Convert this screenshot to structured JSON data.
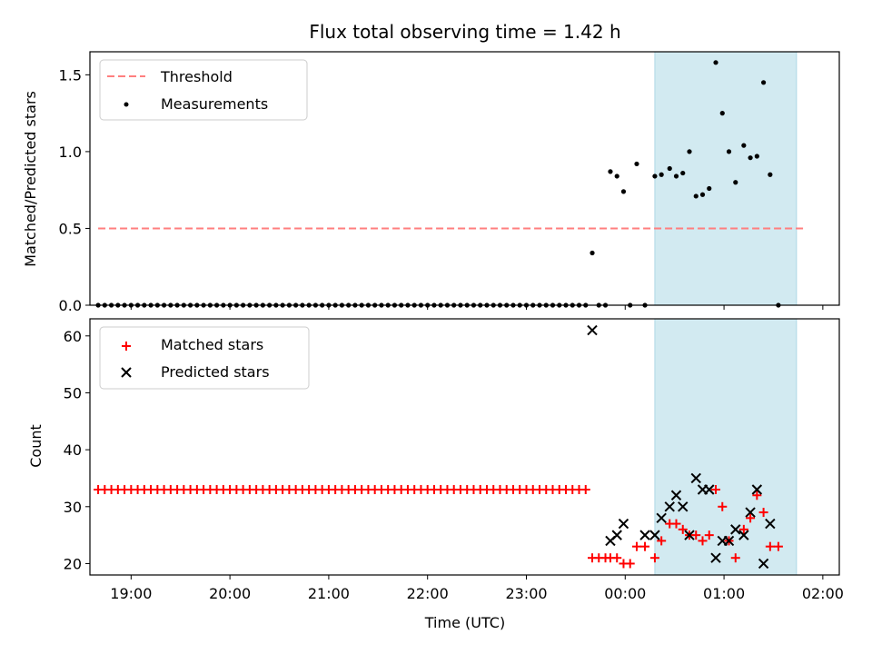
{
  "title": "Flux total observing time = 1.42 h",
  "colors": {
    "threshold": "#ff7f7f",
    "measurement": "#000000",
    "matched": "#ff0000",
    "predicted": "#000000",
    "window_fill": "#add8e6"
  },
  "chart_data": [
    {
      "type": "scatter",
      "ylabel": "Matched/Predicted stars",
      "xlabel": "",
      "ylim": [
        0,
        1.65
      ],
      "xlim": [
        "18:35",
        "02:10"
      ],
      "yticks": [
        0.0,
        0.5,
        1.0,
        1.5
      ],
      "ytick_labels": [
        "0.0",
        "0.5",
        "1.0",
        "1.5"
      ],
      "grid": false,
      "legend_position": "upper-left",
      "legend": [
        "Threshold",
        "Measurements"
      ],
      "observing_window": [
        "00:18",
        "01:44"
      ],
      "threshold": {
        "name": "Threshold",
        "value": 0.5,
        "x": [
          "18:40",
          "01:50"
        ]
      },
      "series": [
        {
          "name": "Measurements",
          "points": [
            [
              "18:40",
              0
            ],
            [
              "18:44",
              0
            ],
            [
              "18:48",
              0
            ],
            [
              "18:52",
              0
            ],
            [
              "18:56",
              0
            ],
            [
              "19:00",
              0
            ],
            [
              "19:04",
              0
            ],
            [
              "19:08",
              0
            ],
            [
              "19:12",
              0
            ],
            [
              "19:16",
              0
            ],
            [
              "19:20",
              0
            ],
            [
              "19:24",
              0
            ],
            [
              "19:28",
              0
            ],
            [
              "19:32",
              0
            ],
            [
              "19:36",
              0
            ],
            [
              "19:40",
              0
            ],
            [
              "19:44",
              0
            ],
            [
              "19:48",
              0
            ],
            [
              "19:52",
              0
            ],
            [
              "19:56",
              0
            ],
            [
              "20:00",
              0
            ],
            [
              "20:04",
              0
            ],
            [
              "20:08",
              0
            ],
            [
              "20:12",
              0
            ],
            [
              "20:16",
              0
            ],
            [
              "20:20",
              0
            ],
            [
              "20:24",
              0
            ],
            [
              "20:28",
              0
            ],
            [
              "20:32",
              0
            ],
            [
              "20:36",
              0
            ],
            [
              "20:40",
              0
            ],
            [
              "20:44",
              0
            ],
            [
              "20:48",
              0
            ],
            [
              "20:52",
              0
            ],
            [
              "20:56",
              0
            ],
            [
              "21:00",
              0
            ],
            [
              "21:04",
              0
            ],
            [
              "21:08",
              0
            ],
            [
              "21:12",
              0
            ],
            [
              "21:16",
              0
            ],
            [
              "21:20",
              0
            ],
            [
              "21:24",
              0
            ],
            [
              "21:28",
              0
            ],
            [
              "21:32",
              0
            ],
            [
              "21:36",
              0
            ],
            [
              "21:40",
              0
            ],
            [
              "21:44",
              0
            ],
            [
              "21:48",
              0
            ],
            [
              "21:52",
              0
            ],
            [
              "21:56",
              0
            ],
            [
              "22:00",
              0
            ],
            [
              "22:04",
              0
            ],
            [
              "22:08",
              0
            ],
            [
              "22:12",
              0
            ],
            [
              "22:16",
              0
            ],
            [
              "22:20",
              0
            ],
            [
              "22:24",
              0
            ],
            [
              "22:28",
              0
            ],
            [
              "22:32",
              0
            ],
            [
              "22:36",
              0
            ],
            [
              "22:40",
              0
            ],
            [
              "22:44",
              0
            ],
            [
              "22:48",
              0
            ],
            [
              "22:52",
              0
            ],
            [
              "22:56",
              0
            ],
            [
              "23:00",
              0
            ],
            [
              "23:04",
              0
            ],
            [
              "23:08",
              0
            ],
            [
              "23:12",
              0
            ],
            [
              "23:16",
              0
            ],
            [
              "23:20",
              0
            ],
            [
              "23:24",
              0
            ],
            [
              "23:28",
              0
            ],
            [
              "23:32",
              0
            ],
            [
              "23:36",
              0
            ],
            [
              "23:40",
              0.34
            ],
            [
              "23:44",
              0
            ],
            [
              "23:48",
              0
            ],
            [
              "23:51",
              0.87
            ],
            [
              "23:55",
              0.84
            ],
            [
              "23:59",
              0.74
            ],
            [
              "00:03",
              0
            ],
            [
              "00:07",
              0.92
            ],
            [
              "00:12",
              0
            ],
            [
              "00:18",
              0.84
            ],
            [
              "00:22",
              0.85
            ],
            [
              "00:27",
              0.89
            ],
            [
              "00:31",
              0.84
            ],
            [
              "00:35",
              0.86
            ],
            [
              "00:39",
              1.0
            ],
            [
              "00:43",
              0.71
            ],
            [
              "00:47",
              0.72
            ],
            [
              "00:51",
              0.76
            ],
            [
              "00:55",
              1.58
            ],
            [
              "00:59",
              1.25
            ],
            [
              "01:03",
              1.0
            ],
            [
              "01:07",
              0.8
            ],
            [
              "01:12",
              1.04
            ],
            [
              "01:16",
              0.96
            ],
            [
              "01:20",
              0.97
            ],
            [
              "01:24",
              1.45
            ],
            [
              "01:28",
              0.85
            ],
            [
              "01:33",
              0
            ]
          ]
        }
      ]
    },
    {
      "type": "scatter",
      "ylabel": "Count",
      "xlabel": "Time (UTC)",
      "ylim": [
        18,
        63
      ],
      "xlim": [
        "18:35",
        "02:10"
      ],
      "yticks": [
        20,
        30,
        40,
        50,
        60
      ],
      "ytick_labels": [
        "20",
        "30",
        "40",
        "50",
        "60"
      ],
      "xticks": [
        "19:00",
        "20:00",
        "21:00",
        "22:00",
        "23:00",
        "00:00",
        "01:00",
        "02:00"
      ],
      "xtick_labels": [
        "19:00",
        "20:00",
        "21:00",
        "22:00",
        "23:00",
        "00:00",
        "01:00",
        "02:00"
      ],
      "grid": false,
      "legend_position": "upper-left",
      "legend": [
        "Matched stars",
        "Predicted stars"
      ],
      "observing_window": [
        "00:18",
        "01:44"
      ],
      "series": [
        {
          "name": "Matched stars",
          "marker": "plus",
          "points": [
            [
              "18:40",
              33
            ],
            [
              "18:44",
              33
            ],
            [
              "18:48",
              33
            ],
            [
              "18:52",
              33
            ],
            [
              "18:56",
              33
            ],
            [
              "19:00",
              33
            ],
            [
              "19:04",
              33
            ],
            [
              "19:08",
              33
            ],
            [
              "19:12",
              33
            ],
            [
              "19:16",
              33
            ],
            [
              "19:20",
              33
            ],
            [
              "19:24",
              33
            ],
            [
              "19:28",
              33
            ],
            [
              "19:32",
              33
            ],
            [
              "19:36",
              33
            ],
            [
              "19:40",
              33
            ],
            [
              "19:44",
              33
            ],
            [
              "19:48",
              33
            ],
            [
              "19:52",
              33
            ],
            [
              "19:56",
              33
            ],
            [
              "20:00",
              33
            ],
            [
              "20:04",
              33
            ],
            [
              "20:08",
              33
            ],
            [
              "20:12",
              33
            ],
            [
              "20:16",
              33
            ],
            [
              "20:20",
              33
            ],
            [
              "20:24",
              33
            ],
            [
              "20:28",
              33
            ],
            [
              "20:32",
              33
            ],
            [
              "20:36",
              33
            ],
            [
              "20:40",
              33
            ],
            [
              "20:44",
              33
            ],
            [
              "20:48",
              33
            ],
            [
              "20:52",
              33
            ],
            [
              "20:56",
              33
            ],
            [
              "21:00",
              33
            ],
            [
              "21:04",
              33
            ],
            [
              "21:08",
              33
            ],
            [
              "21:12",
              33
            ],
            [
              "21:16",
              33
            ],
            [
              "21:20",
              33
            ],
            [
              "21:24",
              33
            ],
            [
              "21:28",
              33
            ],
            [
              "21:32",
              33
            ],
            [
              "21:36",
              33
            ],
            [
              "21:40",
              33
            ],
            [
              "21:44",
              33
            ],
            [
              "21:48",
              33
            ],
            [
              "21:52",
              33
            ],
            [
              "21:56",
              33
            ],
            [
              "22:00",
              33
            ],
            [
              "22:04",
              33
            ],
            [
              "22:08",
              33
            ],
            [
              "22:12",
              33
            ],
            [
              "22:16",
              33
            ],
            [
              "22:20",
              33
            ],
            [
              "22:24",
              33
            ],
            [
              "22:28",
              33
            ],
            [
              "22:32",
              33
            ],
            [
              "22:36",
              33
            ],
            [
              "22:40",
              33
            ],
            [
              "22:44",
              33
            ],
            [
              "22:48",
              33
            ],
            [
              "22:52",
              33
            ],
            [
              "22:56",
              33
            ],
            [
              "23:00",
              33
            ],
            [
              "23:04",
              33
            ],
            [
              "23:08",
              33
            ],
            [
              "23:12",
              33
            ],
            [
              "23:16",
              33
            ],
            [
              "23:20",
              33
            ],
            [
              "23:24",
              33
            ],
            [
              "23:28",
              33
            ],
            [
              "23:32",
              33
            ],
            [
              "23:36",
              33
            ],
            [
              "23:40",
              21
            ],
            [
              "23:44",
              21
            ],
            [
              "23:48",
              21
            ],
            [
              "23:51",
              21
            ],
            [
              "23:55",
              21
            ],
            [
              "23:59",
              20
            ],
            [
              "00:03",
              20
            ],
            [
              "00:07",
              23
            ],
            [
              "00:12",
              23
            ],
            [
              "00:18",
              21
            ],
            [
              "00:22",
              24
            ],
            [
              "00:27",
              27
            ],
            [
              "00:31",
              27
            ],
            [
              "00:35",
              26
            ],
            [
              "00:39",
              25
            ],
            [
              "00:43",
              25
            ],
            [
              "00:47",
              24
            ],
            [
              "00:51",
              25
            ],
            [
              "00:55",
              33
            ],
            [
              "00:59",
              30
            ],
            [
              "01:03",
              24
            ],
            [
              "01:07",
              21
            ],
            [
              "01:12",
              26
            ],
            [
              "01:16",
              28
            ],
            [
              "01:20",
              32
            ],
            [
              "01:24",
              29
            ],
            [
              "01:28",
              23
            ],
            [
              "01:33",
              23
            ]
          ]
        },
        {
          "name": "Predicted stars",
          "marker": "x",
          "points": [
            [
              "23:40",
              61
            ],
            [
              "23:51",
              24
            ],
            [
              "23:55",
              25
            ],
            [
              "23:59",
              27
            ],
            [
              "00:12",
              25
            ],
            [
              "00:18",
              25
            ],
            [
              "00:22",
              28
            ],
            [
              "00:27",
              30
            ],
            [
              "00:31",
              32
            ],
            [
              "00:35",
              30
            ],
            [
              "00:39",
              25
            ],
            [
              "00:43",
              35
            ],
            [
              "00:47",
              33
            ],
            [
              "00:51",
              33
            ],
            [
              "00:55",
              21
            ],
            [
              "00:59",
              24
            ],
            [
              "01:03",
              24
            ],
            [
              "01:07",
              26
            ],
            [
              "01:12",
              25
            ],
            [
              "01:16",
              29
            ],
            [
              "01:20",
              33
            ],
            [
              "01:24",
              20
            ],
            [
              "01:28",
              27
            ]
          ]
        }
      ]
    }
  ]
}
